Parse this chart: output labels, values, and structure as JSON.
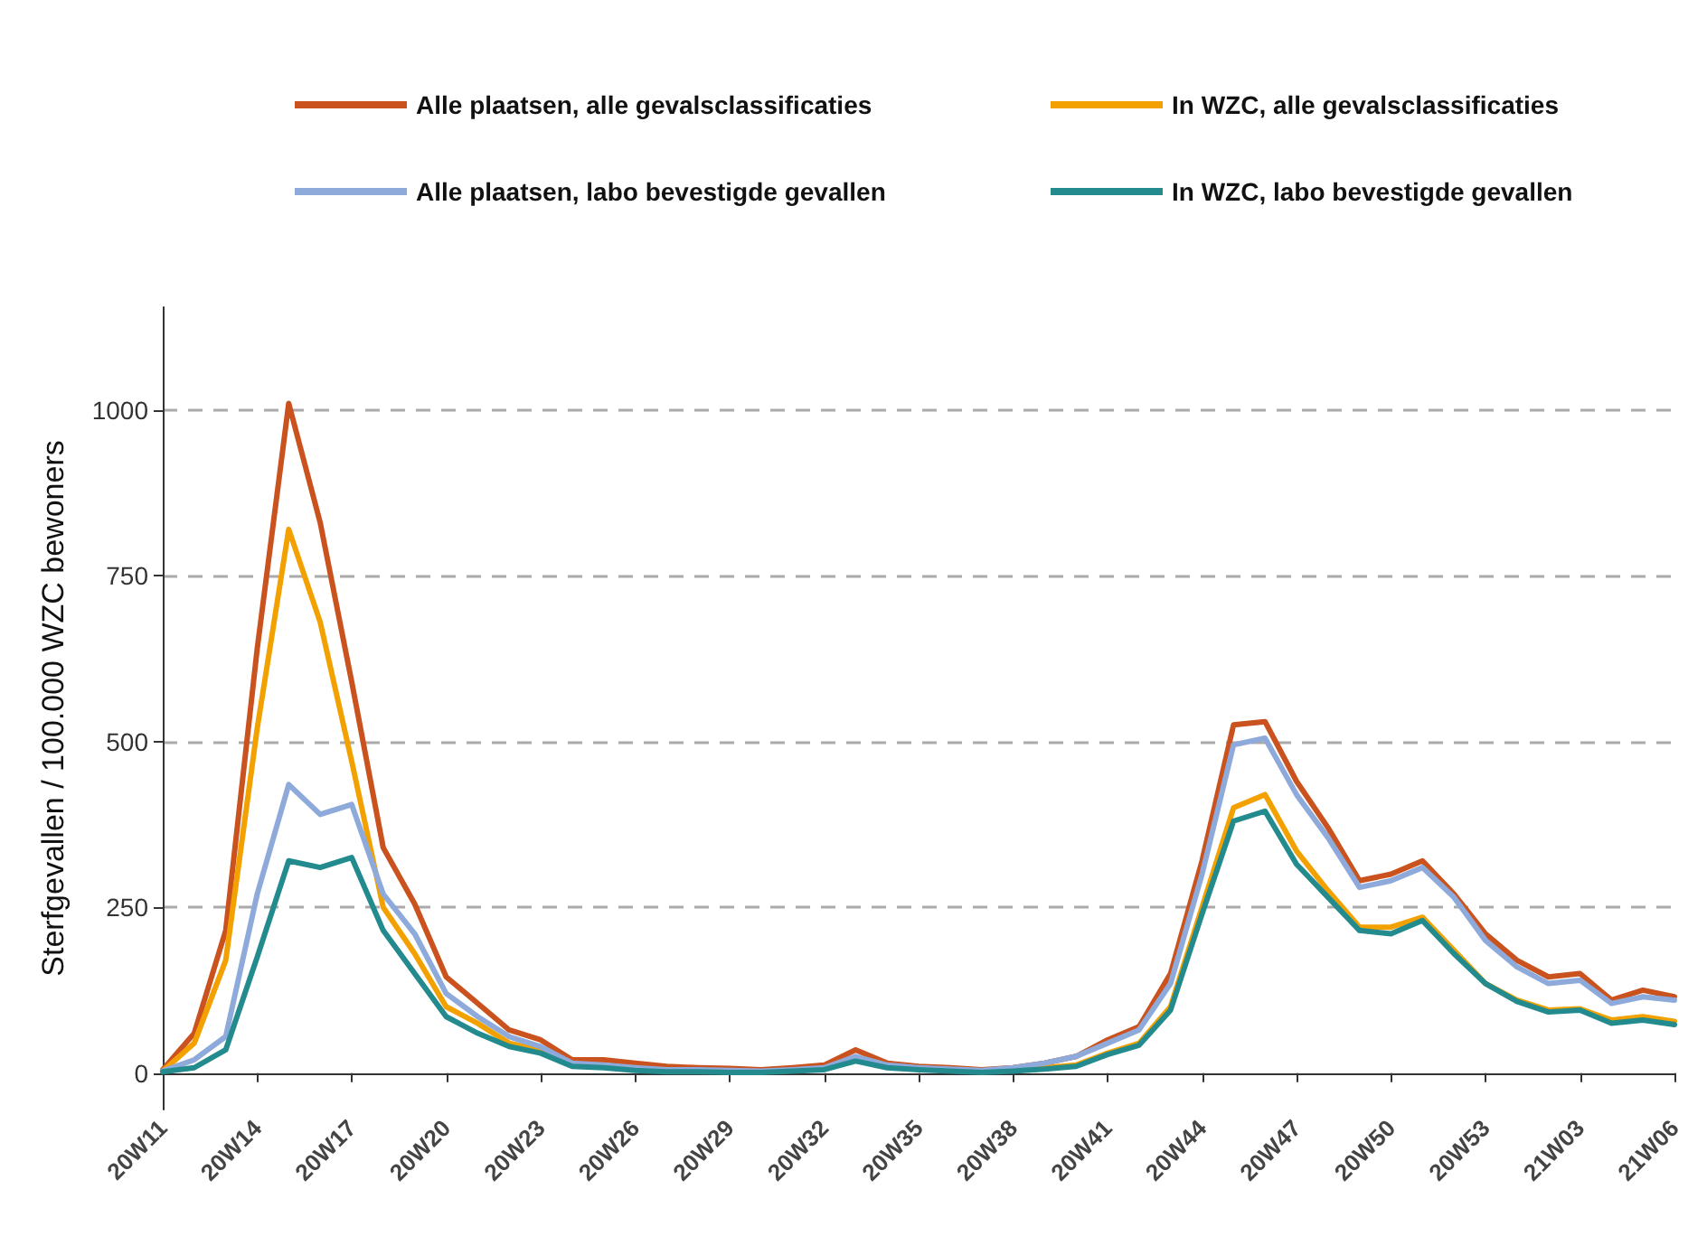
{
  "chart_data": {
    "type": "line",
    "ylabel": "Sterfgevallen / 100.000 WZC bewoners",
    "categories": [
      "20W11",
      null,
      null,
      "20W14",
      null,
      null,
      "20W17",
      null,
      null,
      "20W20",
      null,
      null,
      "20W23",
      null,
      null,
      "20W26",
      null,
      null,
      "20W29",
      null,
      null,
      "20W32",
      null,
      null,
      "20W35",
      null,
      null,
      "20W38",
      null,
      null,
      "20W41",
      null,
      null,
      "20W44",
      null,
      null,
      "20W47",
      null,
      null,
      "20W50",
      null,
      null,
      "20W53",
      null,
      null,
      "21W03",
      null,
      null,
      "21W06"
    ],
    "series": [
      {
        "name": "Alle plaatsen, alle gevalsclassificaties",
        "color": "#c9521e",
        "values": [
          5,
          60,
          215,
          640,
          1010,
          830,
          590,
          340,
          255,
          145,
          105,
          65,
          50,
          20,
          20,
          15,
          10,
          8,
          7,
          5,
          8,
          12,
          35,
          15,
          10,
          8,
          5,
          8,
          15,
          25,
          50,
          70,
          150,
          320,
          525,
          530,
          440,
          370,
          290,
          300,
          320,
          270,
          210,
          170,
          145,
          150,
          110,
          125,
          115
        ]
      },
      {
        "name": "In WZC, alle gevalsclassificaties",
        "color": "#f2a100",
        "values": [
          3,
          45,
          170,
          520,
          820,
          680,
          470,
          250,
          180,
          100,
          75,
          45,
          35,
          12,
          10,
          6,
          3,
          3,
          2,
          2,
          4,
          6,
          22,
          10,
          6,
          4,
          2,
          4,
          8,
          12,
          30,
          45,
          100,
          250,
          400,
          420,
          335,
          275,
          220,
          220,
          235,
          185,
          135,
          110,
          95,
          97,
          80,
          85,
          78
        ]
      },
      {
        "name": "Alle plaatsen, labo bevestigde gevallen",
        "color": "#8eaadb",
        "values": [
          3,
          20,
          55,
          270,
          435,
          390,
          405,
          270,
          210,
          120,
          85,
          55,
          40,
          15,
          12,
          8,
          5,
          5,
          4,
          3,
          5,
          8,
          25,
          12,
          8,
          6,
          4,
          8,
          15,
          25,
          45,
          65,
          135,
          300,
          495,
          505,
          420,
          355,
          280,
          290,
          310,
          265,
          200,
          160,
          135,
          140,
          105,
          115,
          110
        ]
      },
      {
        "name": "In WZC, labo bevestigde gevallen",
        "color": "#238b8e",
        "values": [
          2,
          8,
          35,
          175,
          320,
          310,
          325,
          215,
          150,
          85,
          60,
          40,
          30,
          10,
          8,
          4,
          2,
          2,
          1,
          1,
          3,
          5,
          18,
          8,
          5,
          3,
          1,
          3,
          6,
          10,
          28,
          42,
          95,
          240,
          380,
          395,
          315,
          265,
          215,
          210,
          230,
          180,
          135,
          108,
          92,
          95,
          75,
          80,
          73
        ]
      }
    ],
    "ylim": [
      -55,
      1155
    ],
    "yticks": [
      0,
      250,
      500,
      750,
      1000
    ],
    "grid": "y",
    "legend": "top",
    "line_style": "solid",
    "marker": "none"
  }
}
